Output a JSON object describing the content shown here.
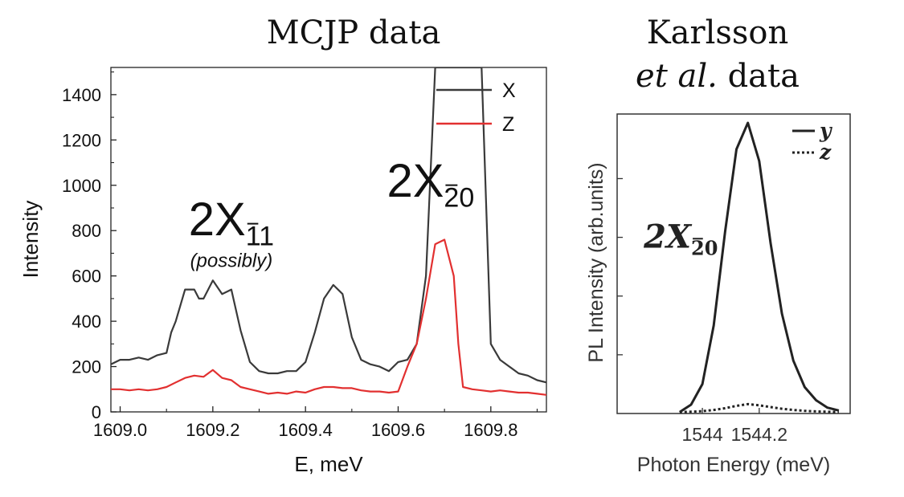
{
  "titles": {
    "left": "MCJP data",
    "right_line1": "Karlsson",
    "right_line2_italic": "et al.",
    "right_line2_rest": " data"
  },
  "chart_data": [
    {
      "type": "line",
      "xlabel": "E, meV",
      "ylabel": "Intensity",
      "xlim": [
        1608.98,
        1609.92
      ],
      "ylim": [
        0,
        1520
      ],
      "xticks": [
        {
          "value": 1609.0,
          "label": "1609.0"
        },
        {
          "value": 1609.2,
          "label": "1609.2"
        },
        {
          "value": 1609.4,
          "label": "1609.4"
        },
        {
          "value": 1609.6,
          "label": "1609.6"
        },
        {
          "value": 1609.8,
          "label": "1609.8"
        }
      ],
      "yticks": [
        {
          "value": 0,
          "label": "0"
        },
        {
          "value": 200,
          "label": "200"
        },
        {
          "value": 400,
          "label": "400"
        },
        {
          "value": 600,
          "label": "600"
        },
        {
          "value": 800,
          "label": "800"
        },
        {
          "value": 1000,
          "label": "1000"
        },
        {
          "value": 1200,
          "label": "1200"
        },
        {
          "value": 1400,
          "label": "1400"
        }
      ],
      "legend": "top-right",
      "series": [
        {
          "name": "X",
          "color": "#3a3a3a",
          "x": [
            1608.98,
            1609.0,
            1609.02,
            1609.04,
            1609.06,
            1609.08,
            1609.1,
            1609.11,
            1609.12,
            1609.14,
            1609.16,
            1609.17,
            1609.18,
            1609.2,
            1609.22,
            1609.24,
            1609.26,
            1609.28,
            1609.3,
            1609.32,
            1609.34,
            1609.36,
            1609.38,
            1609.4,
            1609.42,
            1609.44,
            1609.46,
            1609.48,
            1609.5,
            1609.52,
            1609.54,
            1609.56,
            1609.58,
            1609.6,
            1609.62,
            1609.64,
            1609.66,
            1609.68,
            1609.7,
            1609.72,
            1609.74,
            1609.76,
            1609.78,
            1609.8,
            1609.82,
            1609.84,
            1609.86,
            1609.88,
            1609.9,
            1609.92
          ],
          "y": [
            210,
            230,
            230,
            240,
            230,
            250,
            260,
            350,
            400,
            540,
            540,
            500,
            500,
            580,
            520,
            540,
            360,
            220,
            180,
            170,
            170,
            180,
            180,
            220,
            350,
            500,
            560,
            520,
            330,
            230,
            210,
            200,
            180,
            220,
            230,
            300,
            600,
            1520,
            1520,
            1520,
            1520,
            1520,
            1520,
            300,
            230,
            200,
            170,
            160,
            140,
            130
          ]
        },
        {
          "name": "Z",
          "color": "#e23030",
          "x": [
            1608.98,
            1609.0,
            1609.02,
            1609.04,
            1609.06,
            1609.08,
            1609.1,
            1609.12,
            1609.14,
            1609.16,
            1609.18,
            1609.2,
            1609.22,
            1609.24,
            1609.26,
            1609.28,
            1609.3,
            1609.32,
            1609.34,
            1609.36,
            1609.38,
            1609.4,
            1609.42,
            1609.44,
            1609.46,
            1609.48,
            1609.5,
            1609.52,
            1609.54,
            1609.56,
            1609.58,
            1609.6,
            1609.62,
            1609.64,
            1609.66,
            1609.68,
            1609.7,
            1609.72,
            1609.73,
            1609.74,
            1609.76,
            1609.78,
            1609.8,
            1609.82,
            1609.84,
            1609.86,
            1609.88,
            1609.9,
            1609.92
          ],
          "y": [
            100,
            100,
            95,
            100,
            95,
            100,
            110,
            130,
            150,
            160,
            155,
            185,
            150,
            140,
            110,
            100,
            90,
            80,
            85,
            80,
            90,
            85,
            100,
            110,
            110,
            105,
            105,
            95,
            90,
            90,
            85,
            90,
            200,
            300,
            500,
            740,
            760,
            600,
            300,
            110,
            100,
            95,
            90,
            95,
            90,
            85,
            85,
            80,
            75
          ]
        }
      ],
      "annotations": [
        {
          "text": "2X",
          "subscript": "11",
          "overbar_char": "1",
          "x": 1609.24,
          "y": 780
        },
        {
          "text": "(possibly)",
          "x": 1609.24,
          "y": 640
        },
        {
          "text": "2X",
          "subscript": "20",
          "overbar_char": "2",
          "x": 1609.67,
          "y": 950
        }
      ]
    },
    {
      "type": "line",
      "xlabel": "Photon Energy (meV)",
      "ylabel": "PL Intensity (arb.units)",
      "xlim": [
        1543.7,
        1544.52
      ],
      "ylim": [
        0,
        1.02
      ],
      "xticks": [
        {
          "value": 1544.0,
          "label": "1544"
        },
        {
          "value": 1544.2,
          "label": "1544.2"
        }
      ],
      "legend": "top-right",
      "series": [
        {
          "name": "y",
          "style": "solid",
          "x": [
            1543.92,
            1543.96,
            1544.0,
            1544.04,
            1544.08,
            1544.12,
            1544.16,
            1544.2,
            1544.24,
            1544.28,
            1544.32,
            1544.36,
            1544.4,
            1544.44,
            1544.48
          ],
          "y": [
            0.005,
            0.03,
            0.1,
            0.3,
            0.62,
            0.9,
            0.99,
            0.86,
            0.58,
            0.34,
            0.18,
            0.09,
            0.045,
            0.02,
            0.01
          ]
        },
        {
          "name": "z",
          "style": "dotted",
          "x": [
            1543.92,
            1543.96,
            1544.0,
            1544.04,
            1544.08,
            1544.12,
            1544.16,
            1544.2,
            1544.24,
            1544.28,
            1544.32,
            1544.36,
            1544.4,
            1544.44,
            1544.48
          ],
          "y": [
            0.005,
            0.006,
            0.008,
            0.012,
            0.018,
            0.026,
            0.032,
            0.028,
            0.022,
            0.016,
            0.012,
            0.009,
            0.007,
            0.006,
            0.005
          ]
        }
      ],
      "annotations": [
        {
          "text": "2X",
          "subscript": "20",
          "overbar_char": "2",
          "x": 1544.02,
          "y": 0.62
        }
      ]
    }
  ]
}
